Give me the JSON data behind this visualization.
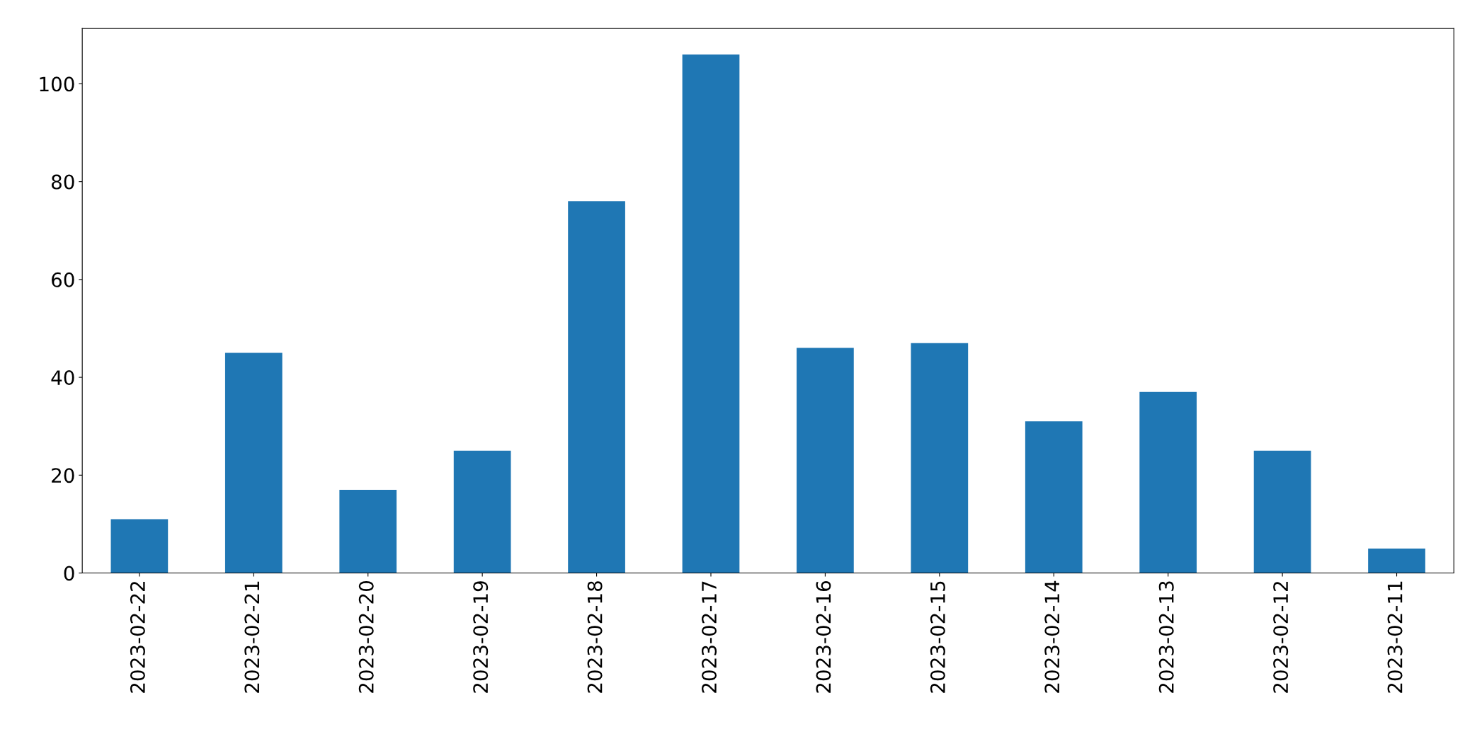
{
  "chart_data": {
    "type": "bar",
    "categories": [
      "2023-02-22",
      "2023-02-21",
      "2023-02-20",
      "2023-02-19",
      "2023-02-18",
      "2023-02-17",
      "2023-02-16",
      "2023-02-15",
      "2023-02-14",
      "2023-02-13",
      "2023-02-12",
      "2023-02-11"
    ],
    "values": [
      11,
      45,
      17,
      25,
      76,
      106,
      46,
      47,
      31,
      37,
      25,
      5
    ],
    "color": "#1f77b4",
    "ylim": [
      0,
      111.3
    ],
    "yticks": [
      0,
      20,
      40,
      60,
      80,
      100
    ],
    "grid": false,
    "legend": false
  }
}
